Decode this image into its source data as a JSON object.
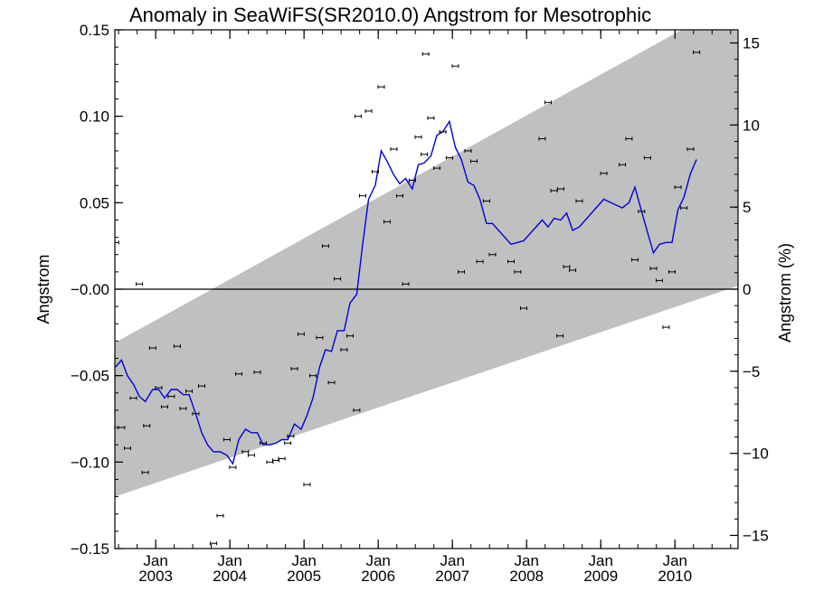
{
  "chart_data": {
    "type": "scatter",
    "title": "Anomaly in SeaWiFS(SR2010.0) Angstrom for Mesotrophic",
    "ylabel": "Angstrom",
    "y2label": "Angstrom (%)",
    "xlim": [
      2002.45,
      2010.85
    ],
    "ylim": [
      -0.15,
      0.15
    ],
    "y2lim": [
      -15.8,
      15.8
    ],
    "yticks": [
      -0.15,
      -0.1,
      -0.05,
      0.0,
      0.05,
      0.1,
      0.15
    ],
    "ytick_labels": [
      "−0.15",
      "−0.10",
      "−0.05",
      "−0.00",
      "0.05",
      "0.10",
      "0.15"
    ],
    "y2ticks": [
      -15,
      -10,
      -5,
      0,
      5,
      10,
      15
    ],
    "y2tick_labels": [
      "−15",
      "−10",
      "−5",
      "0",
      "5",
      "10",
      "15"
    ],
    "xticks": [
      2003.0,
      2004.0,
      2005.0,
      2006.0,
      2007.0,
      2008.0,
      2009.0,
      2010.0
    ],
    "xtick_top": [
      "Jan",
      "Jan",
      "Jan",
      "Jan",
      "Jan",
      "Jan",
      "Jan",
      "Jan"
    ],
    "xtick_bottom": [
      "2003",
      "2004",
      "2005",
      "2006",
      "2007",
      "2008",
      "2009",
      "2010"
    ],
    "zero_line": 0.0,
    "band": {
      "upper": [
        [
          2002.45,
          -0.031
        ],
        [
          2010.85,
          0.168
        ]
      ],
      "lower": [
        [
          2002.45,
          -0.12
        ],
        [
          2010.85,
          0.002
        ]
      ],
      "color": "#c0c0c0"
    },
    "points": [
      [
        2002.46,
        0.027
      ],
      [
        2002.54,
        -0.08
      ],
      [
        2002.62,
        -0.092
      ],
      [
        2002.7,
        -0.063
      ],
      [
        2002.78,
        0.003
      ],
      [
        2002.86,
        -0.106
      ],
      [
        2002.88,
        -0.079
      ],
      [
        2002.96,
        -0.034
      ],
      [
        2003.04,
        -0.057
      ],
      [
        2003.12,
        -0.068
      ],
      [
        2003.21,
        -0.062
      ],
      [
        2003.29,
        -0.033
      ],
      [
        2003.37,
        -0.069
      ],
      [
        2003.45,
        -0.059
      ],
      [
        2003.54,
        -0.072
      ],
      [
        2003.62,
        -0.056
      ],
      [
        2003.78,
        -0.147
      ],
      [
        2003.87,
        -0.131
      ],
      [
        2003.96,
        -0.087
      ],
      [
        2004.04,
        -0.103
      ],
      [
        2004.12,
        -0.049
      ],
      [
        2004.21,
        -0.094
      ],
      [
        2004.29,
        -0.096
      ],
      [
        2004.37,
        -0.048
      ],
      [
        2004.45,
        -0.089
      ],
      [
        2004.54,
        -0.1
      ],
      [
        2004.62,
        -0.099
      ],
      [
        2004.7,
        -0.098
      ],
      [
        2004.78,
        -0.089
      ],
      [
        2004.82,
        -0.085
      ],
      [
        2004.87,
        -0.046
      ],
      [
        2004.96,
        -0.026
      ],
      [
        2005.04,
        -0.113
      ],
      [
        2005.12,
        -0.05
      ],
      [
        2005.21,
        -0.028
      ],
      [
        2005.29,
        0.025
      ],
      [
        2005.37,
        -0.054
      ],
      [
        2005.45,
        0.006
      ],
      [
        2005.54,
        -0.035
      ],
      [
        2005.62,
        -0.027
      ],
      [
        2005.71,
        -0.07
      ],
      [
        2005.73,
        0.1
      ],
      [
        2005.79,
        0.054
      ],
      [
        2005.87,
        0.103
      ],
      [
        2005.96,
        0.068
      ],
      [
        2006.04,
        0.117
      ],
      [
        2006.12,
        0.039
      ],
      [
        2006.21,
        0.081
      ],
      [
        2006.29,
        0.054
      ],
      [
        2006.37,
        0.003
      ],
      [
        2006.46,
        0.063
      ],
      [
        2006.54,
        0.088
      ],
      [
        2006.62,
        0.078
      ],
      [
        2006.64,
        0.136
      ],
      [
        2006.71,
        0.099
      ],
      [
        2006.79,
        0.07
      ],
      [
        2006.87,
        0.091
      ],
      [
        2006.96,
        0.076
      ],
      [
        2007.04,
        0.129
      ],
      [
        2007.12,
        0.01
      ],
      [
        2007.21,
        0.08
      ],
      [
        2007.29,
        0.074
      ],
      [
        2007.37,
        0.016
      ],
      [
        2007.46,
        0.051
      ],
      [
        2007.54,
        0.02
      ],
      [
        2007.79,
        0.016
      ],
      [
        2007.88,
        0.01
      ],
      [
        2007.96,
        -0.011
      ],
      [
        2008.21,
        0.087
      ],
      [
        2008.29,
        0.108
      ],
      [
        2008.37,
        0.057
      ],
      [
        2008.45,
        -0.027
      ],
      [
        2008.46,
        0.058
      ],
      [
        2008.54,
        0.013
      ],
      [
        2008.62,
        0.011
      ],
      [
        2008.71,
        0.051
      ],
      [
        2009.04,
        0.067
      ],
      [
        2009.29,
        0.072
      ],
      [
        2009.38,
        0.087
      ],
      [
        2009.46,
        0.017
      ],
      [
        2009.55,
        0.045
      ],
      [
        2009.63,
        0.076
      ],
      [
        2009.71,
        0.012
      ],
      [
        2009.79,
        0.005
      ],
      [
        2009.88,
        -0.022
      ],
      [
        2009.96,
        0.01
      ],
      [
        2010.04,
        0.059
      ],
      [
        2010.12,
        0.047
      ],
      [
        2010.21,
        0.081
      ],
      [
        2010.29,
        0.137
      ]
    ],
    "line": {
      "color": "#0000dd",
      "x": [
        2002.46,
        2002.54,
        2002.62,
        2002.7,
        2002.78,
        2002.86,
        2002.96,
        2003.04,
        2003.12,
        2003.21,
        2003.29,
        2003.37,
        2003.45,
        2003.54,
        2003.62,
        2003.7,
        2003.78,
        2003.87,
        2003.96,
        2004.04,
        2004.12,
        2004.21,
        2004.29,
        2004.37,
        2004.45,
        2004.54,
        2004.62,
        2004.7,
        2004.78,
        2004.87,
        2004.96,
        2005.04,
        2005.12,
        2005.21,
        2005.29,
        2005.37,
        2005.45,
        2005.54,
        2005.62,
        2005.71,
        2005.79,
        2005.87,
        2005.96,
        2006.04,
        2006.12,
        2006.21,
        2006.29,
        2006.37,
        2006.46,
        2006.54,
        2006.62,
        2006.71,
        2006.79,
        2006.87,
        2006.96,
        2007.04,
        2007.12,
        2007.21,
        2007.29,
        2007.37,
        2007.46,
        2007.54,
        2007.79,
        2007.88,
        2007.96,
        2008.21,
        2008.29,
        2008.37,
        2008.46,
        2008.54,
        2008.62,
        2008.71,
        2009.04,
        2009.29,
        2009.38,
        2009.46,
        2009.55,
        2009.63,
        2009.71,
        2009.79,
        2009.88,
        2009.96,
        2010.04,
        2010.12,
        2010.21,
        2010.29
      ],
      "y": [
        -0.045,
        -0.041,
        -0.05,
        -0.055,
        -0.062,
        -0.065,
        -0.058,
        -0.058,
        -0.063,
        -0.058,
        -0.058,
        -0.061,
        -0.061,
        -0.072,
        -0.083,
        -0.09,
        -0.094,
        -0.094,
        -0.096,
        -0.101,
        -0.087,
        -0.081,
        -0.083,
        -0.083,
        -0.09,
        -0.09,
        -0.089,
        -0.087,
        -0.087,
        -0.078,
        -0.081,
        -0.073,
        -0.063,
        -0.045,
        -0.035,
        -0.036,
        -0.024,
        -0.024,
        -0.008,
        -0.003,
        0.026,
        0.052,
        0.06,
        0.08,
        0.074,
        0.066,
        0.061,
        0.064,
        0.058,
        0.072,
        0.073,
        0.077,
        0.089,
        0.091,
        0.097,
        0.082,
        0.075,
        0.062,
        0.06,
        0.052,
        0.038,
        0.038,
        0.026,
        0.027,
        0.028,
        0.04,
        0.036,
        0.041,
        0.04,
        0.044,
        0.034,
        0.036,
        0.052,
        0.047,
        0.05,
        0.059,
        0.045,
        0.033,
        0.021,
        0.026,
        0.027,
        0.027,
        0.046,
        0.053,
        0.067,
        0.075
      ]
    }
  }
}
